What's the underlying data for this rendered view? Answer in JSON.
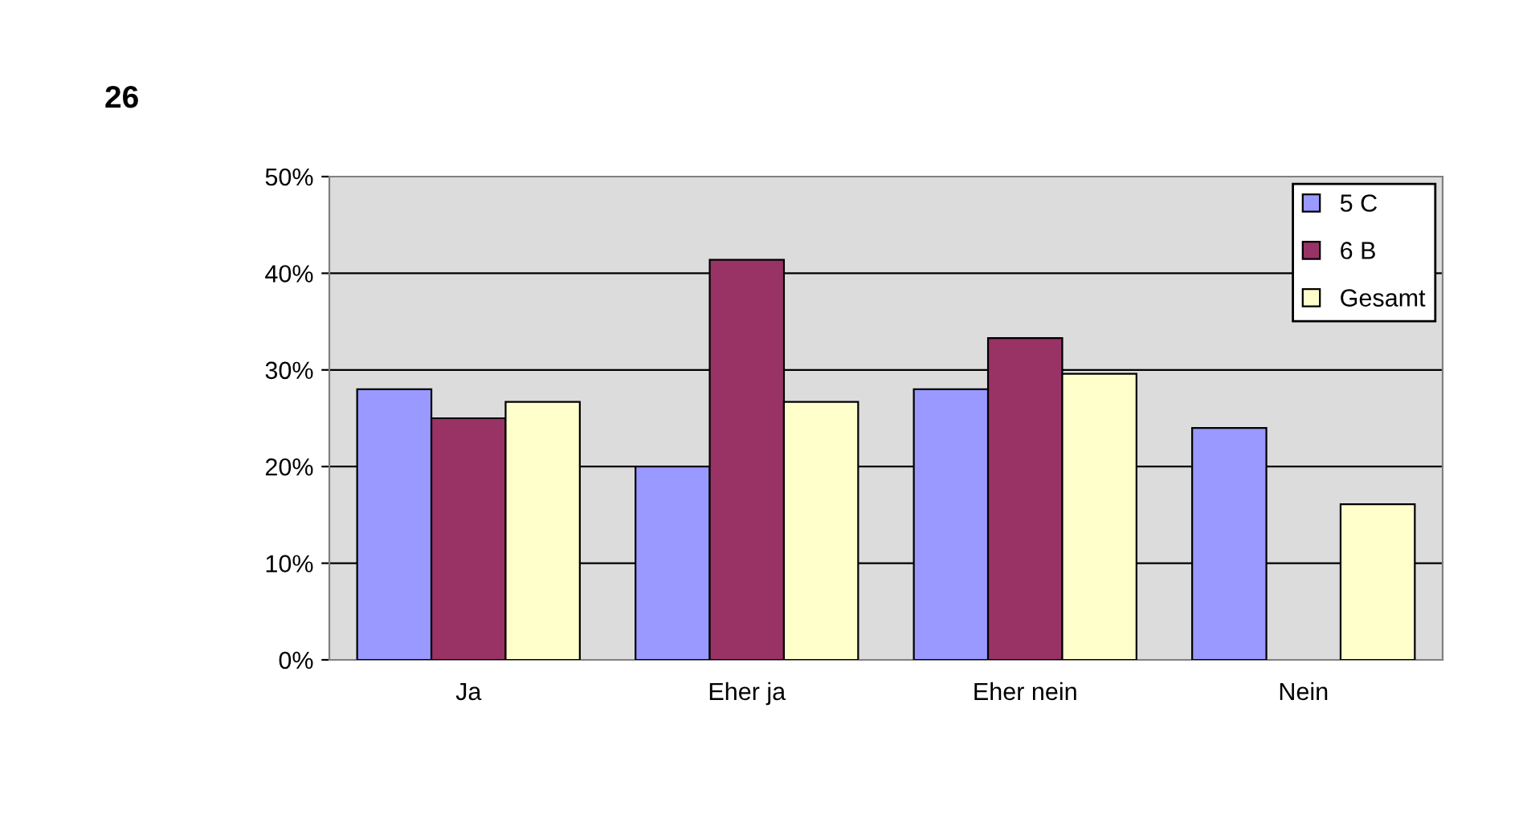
{
  "chart_data": {
    "type": "bar",
    "title": "26",
    "categories": [
      "Ja",
      "Eher ja",
      "Eher nein",
      "Nein"
    ],
    "series": [
      {
        "name": "5 C",
        "color": "#9999ff",
        "values": [
          28,
          20,
          28,
          24
        ]
      },
      {
        "name": "6 B",
        "color": "#993366",
        "values": [
          25,
          41.4,
          33.3,
          0
        ]
      },
      {
        "name": "Gesamt",
        "color": "#ffffcc",
        "values": [
          26.7,
          26.7,
          29.6,
          16.1
        ]
      }
    ],
    "ylim": [
      0,
      50
    ],
    "yticks": [
      {
        "value": 0,
        "label": "0%"
      },
      {
        "value": 10,
        "label": "10%"
      },
      {
        "value": 20,
        "label": "20%"
      },
      {
        "value": 30,
        "label": "30%"
      },
      {
        "value": 40,
        "label": "40%"
      },
      {
        "value": 50,
        "label": "50%"
      }
    ],
    "grid": "y",
    "legend": "top right"
  }
}
